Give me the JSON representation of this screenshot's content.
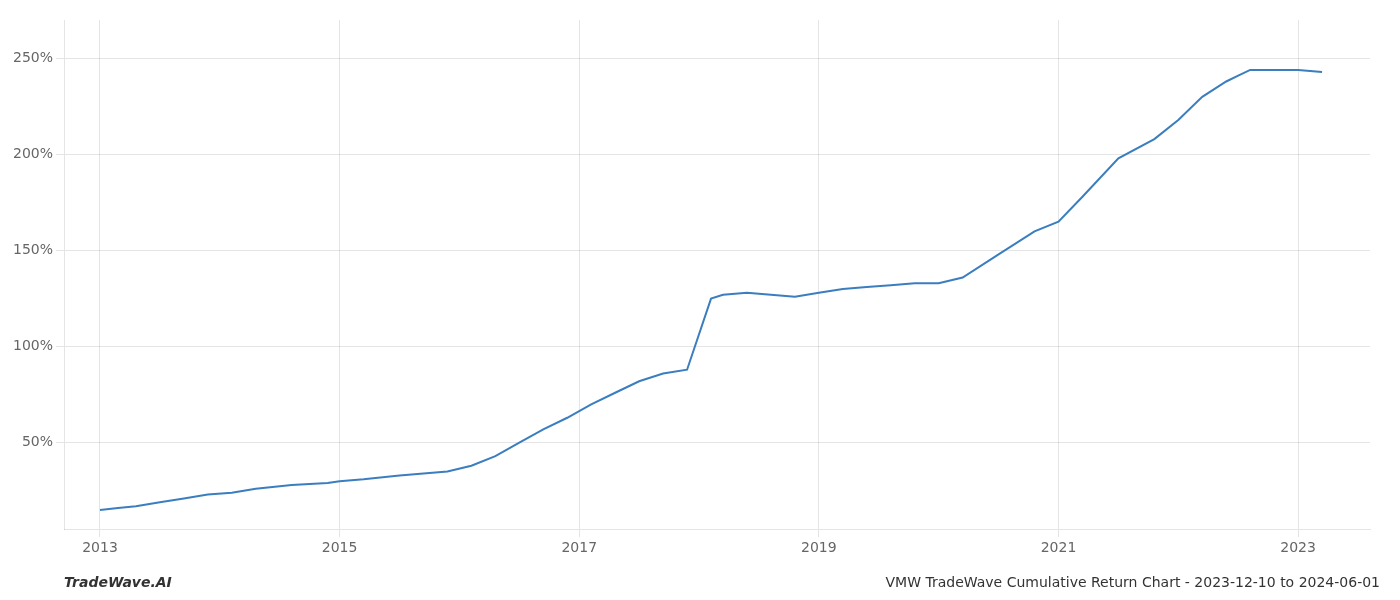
{
  "chart_data": {
    "type": "line",
    "title": "VMW TradeWave Cumulative Return Chart - 2023-12-10 to 2024-06-01",
    "annotations": [
      "TradeWave.AI"
    ],
    "x": [
      2013.0,
      2013.15,
      2013.3,
      2013.5,
      2013.7,
      2013.9,
      2014.1,
      2014.3,
      2014.6,
      2014.9,
      2015.0,
      2015.2,
      2015.5,
      2015.7,
      2015.9,
      2016.1,
      2016.3,
      2016.5,
      2016.7,
      2016.9,
      2017.1,
      2017.3,
      2017.5,
      2017.7,
      2017.9,
      2018.1,
      2018.2,
      2018.4,
      2018.6,
      2018.8,
      2019.0,
      2019.2,
      2019.4,
      2019.6,
      2019.8,
      2020.0,
      2020.2,
      2020.5,
      2020.8,
      2021.0,
      2021.2,
      2021.5,
      2021.8,
      2022.0,
      2022.2,
      2022.4,
      2022.5,
      2022.6,
      2022.7,
      2022.8,
      2022.9,
      2023.0,
      2023.2
    ],
    "values": [
      15,
      16,
      17,
      19,
      21,
      23,
      24,
      26,
      28,
      29,
      30,
      31,
      33,
      34,
      35,
      38,
      43,
      50,
      57,
      63,
      70,
      76,
      82,
      86,
      88,
      125,
      127,
      128,
      127,
      126,
      128,
      130,
      131,
      132,
      133,
      133,
      136,
      148,
      160,
      165,
      178,
      198,
      208,
      218,
      230,
      238,
      241,
      244,
      244,
      244,
      244,
      244,
      243
    ],
    "color": "#3a7ebf",
    "xlim": [
      2012.7,
      2023.6
    ],
    "ylim": [
      5,
      270
    ],
    "xticks": [
      2013,
      2015,
      2017,
      2019,
      2021,
      2023
    ],
    "yticks": [
      {
        "value": 50,
        "label": "50%"
      },
      {
        "value": 100,
        "label": "100%"
      },
      {
        "value": 150,
        "label": "150%"
      },
      {
        "value": 200,
        "label": "200%"
      },
      {
        "value": 250,
        "label": "250%"
      }
    ],
    "grid": true
  }
}
